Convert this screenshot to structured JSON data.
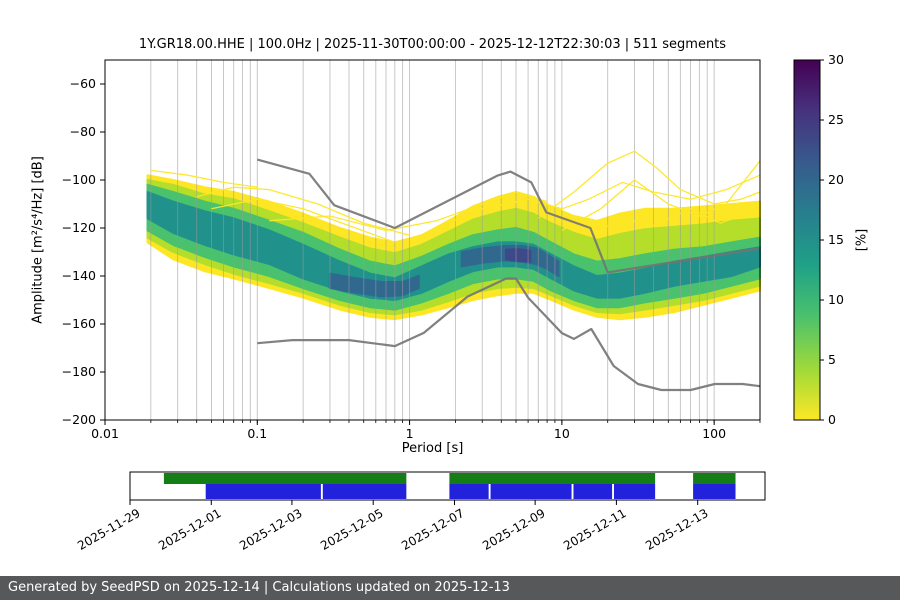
{
  "footer": {
    "text": "Generated by SeedPSD on 2025-12-14 | Calculations updated on 2025-12-13"
  },
  "chart_data": {
    "type": "heatmap",
    "title": "1Y.GR18.00.HHE | 100.0Hz | 2025-11-30T00:00:00 - 2025-12-12T22:30:03 | 511 segments",
    "xlabel": "Period [s]",
    "ylabel": "Amplitude [m²/s⁴/Hz] [dB]",
    "xscale": "log",
    "xlim": [
      0.01,
      200
    ],
    "ylim": [
      -200,
      -50
    ],
    "grid": "vertical-log-minor",
    "xticks": [
      0.01,
      0.1,
      1,
      10,
      100
    ],
    "xtick_labels": [
      "0.01",
      "0.1",
      "1",
      "10",
      "100"
    ],
    "yticks": [
      -200,
      -180,
      -160,
      -140,
      -120,
      -100,
      -80,
      -60
    ],
    "curve_color": "#fde725",
    "model_color": "#737373",
    "colorbar": {
      "label": "[%]",
      "min": 0,
      "max": 30,
      "ticks": [
        0,
        5,
        10,
        15,
        20,
        25,
        30
      ],
      "colormap": "viridis_r",
      "gradient": [
        [
          0.0,
          "#fde725"
        ],
        [
          0.14,
          "#a0da39"
        ],
        [
          0.29,
          "#4ac16d"
        ],
        [
          0.43,
          "#1fa187"
        ],
        [
          0.57,
          "#277f8e"
        ],
        [
          0.71,
          "#365c8d"
        ],
        [
          0.86,
          "#46327e"
        ],
        [
          1.0,
          "#440154"
        ]
      ]
    },
    "noise_models": {
      "high": {
        "p": [
          0.1,
          0.22,
          0.32,
          0.8,
          3.8,
          4.6,
          6.3,
          7.9,
          15.4,
          20,
          200
        ],
        "v": [
          -91.5,
          -97.4,
          -110.5,
          -120,
          -98.1,
          -96.5,
          -101,
          -113.5,
          -120,
          -138.5,
          -128.5
        ]
      },
      "low": {
        "p": [
          0.1,
          0.17,
          0.4,
          0.8,
          1.24,
          2.4,
          4.3,
          5,
          6,
          10,
          12,
          15.6,
          21.9,
          31.6,
          45,
          70,
          101,
          154,
          200
        ],
        "v": [
          -168,
          -166.7,
          -166.7,
          -169.2,
          -163.7,
          -148.6,
          -141.1,
          -141.1,
          -149,
          -163.8,
          -166.2,
          -162.1,
          -177.5,
          -185,
          -187.5,
          -187.5,
          -185,
          -185,
          -185.9
        ]
      }
    },
    "density_bands": [
      {
        "name": "outer-yellow",
        "color": "#fde725",
        "p": [
          0.019,
          0.028,
          0.045,
          0.07,
          0.12,
          0.2,
          0.35,
          0.55,
          0.8,
          1.2,
          1.8,
          2.6,
          3.8,
          5,
          6.5,
          8.5,
          12,
          17,
          24,
          35,
          55,
          85,
          130,
          200
        ],
        "top": [
          -98,
          -100,
          -103,
          -105,
          -109,
          -114,
          -120,
          -124,
          -126,
          -123,
          -117,
          -111,
          -107,
          -105,
          -107,
          -111,
          -115,
          -117,
          -114,
          -112,
          -112,
          -111,
          -110,
          -109
        ],
        "bottom": [
          -126,
          -133,
          -138,
          -141,
          -145,
          -149,
          -154,
          -157,
          -158,
          -156,
          -153,
          -150,
          -148,
          -147,
          -147,
          -150,
          -154,
          -157,
          -158,
          -157,
          -155,
          -152,
          -149,
          -146
        ]
      },
      {
        "name": "yellow-green",
        "color": "#b5de2b",
        "p": [
          0.019,
          0.028,
          0.045,
          0.07,
          0.12,
          0.2,
          0.35,
          0.55,
          0.8,
          1.2,
          1.8,
          2.6,
          3.8,
          5,
          6.5,
          8.5,
          12,
          17,
          24,
          35,
          55,
          85,
          130,
          200
        ],
        "top": [
          -100,
          -102,
          -106,
          -108,
          -113,
          -118,
          -124,
          -128.5,
          -130.5,
          -127,
          -121.5,
          -116.5,
          -113.5,
          -112,
          -114,
          -118,
          -122,
          -125,
          -122.5,
          -120.5,
          -119.5,
          -118.5,
          -117,
          -116
        ],
        "bottom": [
          -124,
          -130,
          -135,
          -139,
          -143,
          -147,
          -152,
          -155,
          -156,
          -154,
          -150.5,
          -147,
          -145,
          -144.5,
          -145,
          -148,
          -152,
          -155,
          -155.5,
          -154,
          -152,
          -150,
          -147,
          -144
        ]
      },
      {
        "name": "green",
        "color": "#4ac16d",
        "p": [
          0.019,
          0.028,
          0.045,
          0.07,
          0.12,
          0.2,
          0.35,
          0.55,
          0.8,
          1.2,
          1.8,
          2.6,
          3.8,
          5,
          6.5,
          8.5,
          12,
          17,
          24,
          35,
          55,
          85,
          130,
          200
        ],
        "top": [
          -102,
          -105,
          -109,
          -112,
          -117,
          -122,
          -129,
          -134,
          -136,
          -132,
          -127,
          -123,
          -121,
          -120,
          -122,
          -126,
          -131,
          -134,
          -133,
          -131,
          -129,
          -128,
          -126,
          -124
        ],
        "bottom": [
          -121,
          -127,
          -132,
          -136,
          -140,
          -145,
          -150,
          -153,
          -154,
          -151,
          -147,
          -143,
          -141,
          -141,
          -142,
          -146,
          -150,
          -153,
          -153,
          -151,
          -149,
          -147,
          -144,
          -141
        ]
      },
      {
        "name": "teal",
        "color": "#21918c",
        "p": [
          0.019,
          0.028,
          0.045,
          0.07,
          0.12,
          0.2,
          0.35,
          0.55,
          0.8,
          1.2,
          1.8,
          2.6,
          3.8,
          5,
          6.5,
          8.5,
          12,
          17,
          24,
          35,
          55,
          85,
          130,
          200
        ],
        "top": [
          -105,
          -109,
          -113,
          -116,
          -121,
          -127,
          -134,
          -139,
          -141,
          -136,
          -131,
          -128,
          -126,
          -126,
          -127,
          -131,
          -136,
          -140,
          -139,
          -137,
          -134,
          -132,
          -130,
          -128
        ],
        "bottom": [
          -116,
          -122,
          -127,
          -131,
          -135,
          -141,
          -146,
          -149,
          -150,
          -147,
          -142,
          -138,
          -136,
          -136,
          -137,
          -141,
          -146,
          -149,
          -149,
          -147,
          -144,
          -142,
          -140,
          -136
        ]
      },
      {
        "name": "blue-trough",
        "color": "#31688e",
        "p": [
          0.3,
          0.45,
          0.65,
          0.9,
          1.15
        ],
        "top": [
          -139,
          -141,
          -142.5,
          -142.5,
          -140
        ],
        "bottom": [
          -145,
          -147,
          -148.5,
          -148,
          -145
        ]
      },
      {
        "name": "blue-peak",
        "color": "#31688e",
        "p": [
          2.2,
          3,
          4.2,
          5.5,
          6.8,
          8,
          9.5
        ],
        "top": [
          -130,
          -128.5,
          -127.5,
          -127.5,
          -128.5,
          -131,
          -134
        ],
        "bottom": [
          -136,
          -134.5,
          -133.5,
          -134,
          -135,
          -137,
          -140
        ]
      },
      {
        "name": "dark-knot",
        "color": "#3e4989",
        "p": [
          4.3,
          5.2,
          6.2
        ],
        "top": [
          -129,
          -128.8,
          -129.5
        ],
        "bottom": [
          -133,
          -133.8,
          -134
        ]
      }
    ],
    "outlier_curves": [
      {
        "p": [
          0.02,
          0.035,
          0.06,
          0.1
        ],
        "v": [
          -96,
          -98,
          -101,
          -103
        ]
      },
      {
        "p": [
          0.04,
          0.07,
          0.12,
          0.25,
          0.5,
          1
        ],
        "v": [
          -107,
          -103,
          -104,
          -110,
          -118,
          -123
        ]
      },
      {
        "p": [
          0.05,
          0.1,
          0.2,
          0.4,
          0.8
        ],
        "v": [
          -112,
          -108,
          -112,
          -119,
          -126
        ]
      },
      {
        "p": [
          0.12,
          0.3,
          0.7,
          1.5,
          3,
          5,
          8
        ],
        "v": [
          -117,
          -115,
          -121,
          -117,
          -110,
          -105,
          -109
        ]
      },
      {
        "p": [
          1.5,
          3,
          6,
          10,
          15,
          25,
          40,
          70,
          120,
          200
        ],
        "v": [
          -120,
          -112,
          -108,
          -112,
          -108,
          -101,
          -105,
          -108,
          -104,
          -98
        ]
      },
      {
        "p": [
          7,
          12,
          20,
          30,
          42,
          60,
          100,
          150,
          200
        ],
        "v": [
          -116,
          -105,
          -93,
          -88,
          -95,
          -104,
          -110,
          -108,
          -105
        ]
      },
      {
        "p": [
          10,
          18,
          30,
          50,
          80,
          120,
          200
        ],
        "v": [
          -121,
          -112,
          -100,
          -110,
          -115,
          -110,
          -92
        ]
      },
      {
        "p": [
          15,
          25,
          40,
          70,
          110,
          160,
          200
        ],
        "v": [
          -123,
          -116,
          -119,
          -112,
          -118,
          -114,
          -112
        ]
      }
    ]
  },
  "timeline": {
    "green_color": "#157d15",
    "blue_color": "#2222dd",
    "green_segments": [
      [
        0.052,
        0.435
      ],
      [
        0.503,
        0.828
      ],
      [
        0.888,
        0.955
      ]
    ],
    "blue_segments": [
      [
        0.118,
        0.3
      ],
      [
        0.303,
        0.435
      ],
      [
        0.503,
        0.565
      ],
      [
        0.568,
        0.696
      ],
      [
        0.699,
        0.76
      ],
      [
        0.763,
        0.828
      ],
      [
        0.888,
        0.955
      ]
    ],
    "dates": [
      {
        "label": "2025-11-29",
        "f": 0.0
      },
      {
        "label": "2025-12-01",
        "f": 0.128
      },
      {
        "label": "2025-12-03",
        "f": 0.255
      },
      {
        "label": "2025-12-05",
        "f": 0.383
      },
      {
        "label": "2025-12-07",
        "f": 0.511
      },
      {
        "label": "2025-12-09",
        "f": 0.638
      },
      {
        "label": "2025-12-11",
        "f": 0.766
      },
      {
        "label": "2025-12-13",
        "f": 0.894
      }
    ]
  }
}
